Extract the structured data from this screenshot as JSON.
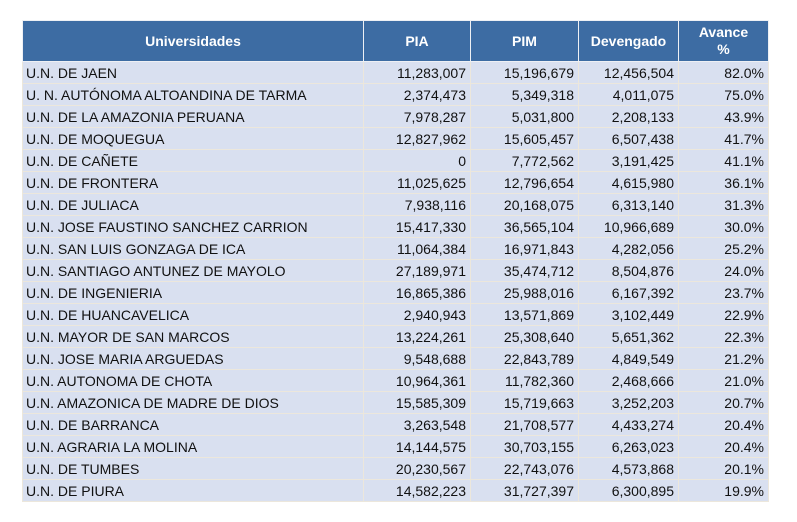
{
  "headers": {
    "name": "Universidades",
    "pia": "PIA",
    "pim": "PIM",
    "devengado": "Devengado",
    "avance": "Avance %"
  },
  "colors": {
    "header_bg": "#3d6ca3",
    "row_bg": "#d9e0f0"
  },
  "rows": [
    {
      "name": "U.N. DE JAEN",
      "pia": "11,283,007",
      "pim": "15,196,679",
      "devengado": "12,456,504",
      "avance": "82.0%"
    },
    {
      "name": "U. N. AUTÓNOMA ALTOANDINA DE TARMA",
      "pia": "2,374,473",
      "pim": "5,349,318",
      "devengado": "4,011,075",
      "avance": "75.0%"
    },
    {
      "name": "U.N. DE LA AMAZONIA PERUANA",
      "pia": "7,978,287",
      "pim": "5,031,800",
      "devengado": "2,208,133",
      "avance": "43.9%"
    },
    {
      "name": "U.N. DE MOQUEGUA",
      "pia": "12,827,962",
      "pim": "15,605,457",
      "devengado": "6,507,438",
      "avance": "41.7%"
    },
    {
      "name": "U.N. DE CAÑETE",
      "pia": "0",
      "pim": "7,772,562",
      "devengado": "3,191,425",
      "avance": "41.1%"
    },
    {
      "name": "U.N. DE FRONTERA",
      "pia": "11,025,625",
      "pim": "12,796,654",
      "devengado": "4,615,980",
      "avance": "36.1%"
    },
    {
      "name": "U.N. DE JULIACA",
      "pia": "7,938,116",
      "pim": "20,168,075",
      "devengado": "6,313,140",
      "avance": "31.3%"
    },
    {
      "name": "U.N. JOSE FAUSTINO SANCHEZ CARRION",
      "pia": "15,417,330",
      "pim": "36,565,104",
      "devengado": "10,966,689",
      "avance": "30.0%"
    },
    {
      "name": "U.N. SAN LUIS GONZAGA DE ICA",
      "pia": "11,064,384",
      "pim": "16,971,843",
      "devengado": "4,282,056",
      "avance": "25.2%"
    },
    {
      "name": "U.N. SANTIAGO ANTUNEZ DE MAYOLO",
      "pia": "27,189,971",
      "pim": "35,474,712",
      "devengado": "8,504,876",
      "avance": "24.0%"
    },
    {
      "name": "U.N. DE INGENIERIA",
      "pia": "16,865,386",
      "pim": "25,988,016",
      "devengado": "6,167,392",
      "avance": "23.7%"
    },
    {
      "name": "U.N. DE HUANCAVELICA",
      "pia": "2,940,943",
      "pim": "13,571,869",
      "devengado": "3,102,449",
      "avance": "22.9%"
    },
    {
      "name": "U.N. MAYOR DE SAN MARCOS",
      "pia": "13,224,261",
      "pim": "25,308,640",
      "devengado": "5,651,362",
      "avance": "22.3%"
    },
    {
      "name": "U.N. JOSE MARIA ARGUEDAS",
      "pia": "9,548,688",
      "pim": "22,843,789",
      "devengado": "4,849,549",
      "avance": "21.2%"
    },
    {
      "name": "U.N. AUTONOMA DE CHOTA",
      "pia": "10,964,361",
      "pim": "11,782,360",
      "devengado": "2,468,666",
      "avance": "21.0%"
    },
    {
      "name": "U.N. AMAZONICA DE MADRE DE DIOS",
      "pia": "15,585,309",
      "pim": "15,719,663",
      "devengado": "3,252,203",
      "avance": "20.7%"
    },
    {
      "name": "U.N. DE BARRANCA",
      "pia": "3,263,548",
      "pim": "21,708,577",
      "devengado": "4,433,274",
      "avance": "20.4%"
    },
    {
      "name": "U.N. AGRARIA LA MOLINA",
      "pia": "14,144,575",
      "pim": "30,703,155",
      "devengado": "6,263,023",
      "avance": "20.4%"
    },
    {
      "name": "U.N. DE TUMBES",
      "pia": "20,230,567",
      "pim": "22,743,076",
      "devengado": "4,573,868",
      "avance": "20.1%"
    },
    {
      "name": "U.N. DE PIURA",
      "pia": "14,582,223",
      "pim": "31,727,397",
      "devengado": "6,300,895",
      "avance": "19.9%"
    }
  ]
}
